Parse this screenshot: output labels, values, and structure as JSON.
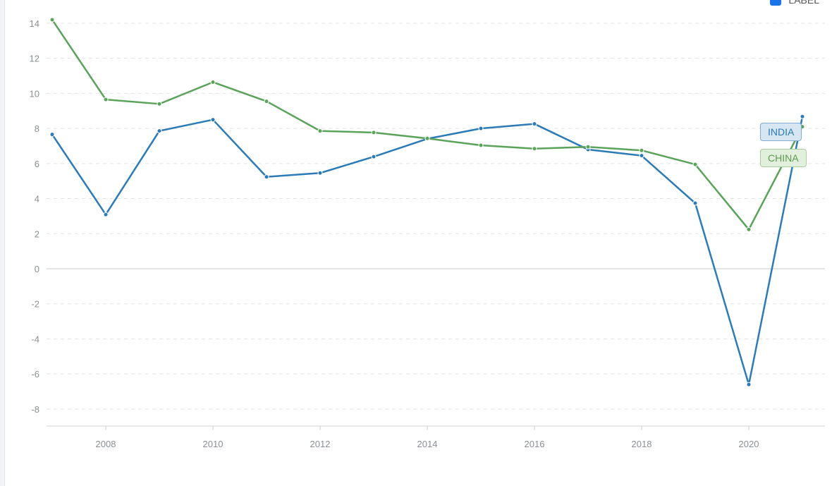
{
  "chart_data": {
    "type": "line",
    "title": "",
    "xlabel": "",
    "ylabel": "",
    "x": [
      2007,
      2008,
      2009,
      2010,
      2011,
      2012,
      2013,
      2014,
      2015,
      2016,
      2017,
      2018,
      2019,
      2020,
      2021
    ],
    "xticks": [
      2008,
      2010,
      2012,
      2014,
      2016,
      2018,
      2020
    ],
    "yticks": [
      -8,
      -6,
      -4,
      -2,
      0,
      2,
      4,
      6,
      8,
      10,
      12,
      14
    ],
    "xlim": [
      2007,
      2021.4
    ],
    "ylim": [
      -8.8,
      14.6
    ],
    "grid": "horizontal dashed",
    "series": [
      {
        "name": "INDIA",
        "color": "#2c7bb6",
        "values": [
          7.66,
          3.09,
          7.86,
          8.5,
          5.24,
          5.46,
          6.39,
          7.41,
          8.0,
          8.26,
          6.8,
          6.45,
          3.74,
          -6.6,
          8.68
        ]
      },
      {
        "name": "CHINA",
        "color": "#5ba35b",
        "values": [
          14.2,
          9.65,
          9.4,
          10.64,
          9.55,
          7.86,
          7.77,
          7.43,
          7.04,
          6.85,
          6.95,
          6.75,
          5.95,
          2.24,
          8.1
        ]
      }
    ]
  },
  "top_legend": {
    "label": "LABEL",
    "color": "#1a73e8"
  }
}
